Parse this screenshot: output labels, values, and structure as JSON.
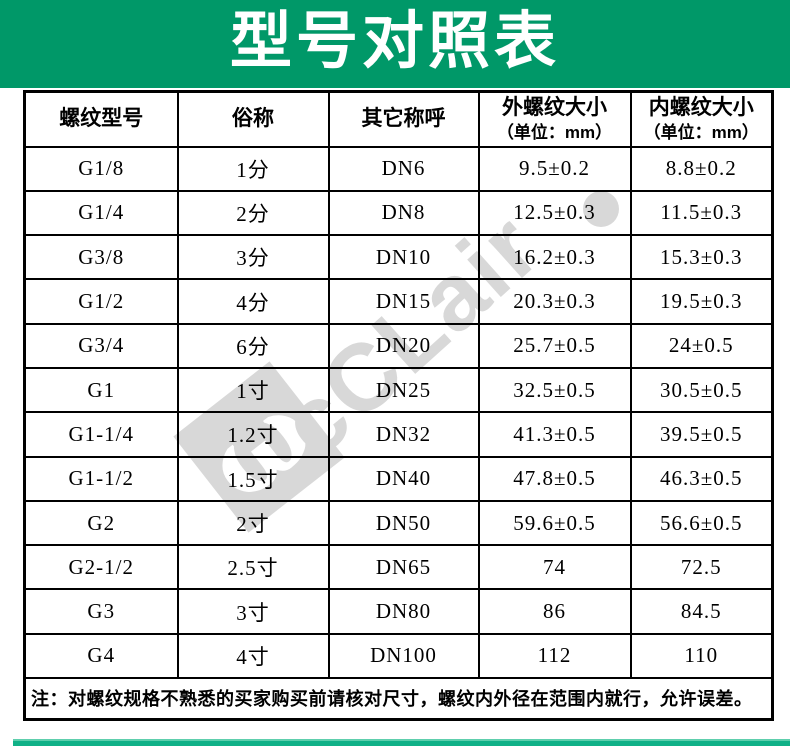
{
  "banner": {
    "title": "型号对照表"
  },
  "watermark": {
    "text": "cCLair",
    "logo_glyph": "ω"
  },
  "colors": {
    "banner_green": "#009868",
    "header_yellow": "#ffff00",
    "bottom_bar_teal": "#10b187",
    "watermark_gray": "#d8d8d8"
  },
  "table": {
    "headers": [
      {
        "label": "螺纹型号",
        "unit": ""
      },
      {
        "label": "俗称",
        "unit": ""
      },
      {
        "label": "其它称呼",
        "unit": ""
      },
      {
        "label": "外螺纹大小",
        "unit": "（单位：mm）"
      },
      {
        "label": "内螺纹大小",
        "unit": "（单位：mm）"
      }
    ],
    "rows": [
      [
        "G1/8",
        "1分",
        "DN6",
        "9.5±0.2",
        "8.8±0.2"
      ],
      [
        "G1/4",
        "2分",
        "DN8",
        "12.5±0.3",
        "11.5±0.3"
      ],
      [
        "G3/8",
        "3分",
        "DN10",
        "16.2±0.3",
        "15.3±0.3"
      ],
      [
        "G1/2",
        "4分",
        "DN15",
        "20.3±0.3",
        "19.5±0.3"
      ],
      [
        "G3/4",
        "6分",
        "DN20",
        "25.7±0.5",
        "24±0.5"
      ],
      [
        "G1",
        "1寸",
        "DN25",
        "32.5±0.5",
        "30.5±0.5"
      ],
      [
        "G1-1/4",
        "1.2寸",
        "DN32",
        "41.3±0.5",
        "39.5±0.5"
      ],
      [
        "G1-1/2",
        "1.5寸",
        "DN40",
        "47.8±0.5",
        "46.3±0.5"
      ],
      [
        "G2",
        "2寸",
        "DN50",
        "59.6±0.5",
        "56.6±0.5"
      ],
      [
        "G2-1/2",
        "2.5寸",
        "DN65",
        "74",
        "72.5"
      ],
      [
        "G3",
        "3寸",
        "DN80",
        "86",
        "84.5"
      ],
      [
        "G4",
        "4寸",
        "DN100",
        "112",
        "110"
      ]
    ],
    "note": "注：对螺纹规格不熟悉的买家购买前请核对尺寸，螺纹内外径在范围内就行，允许误差。"
  }
}
